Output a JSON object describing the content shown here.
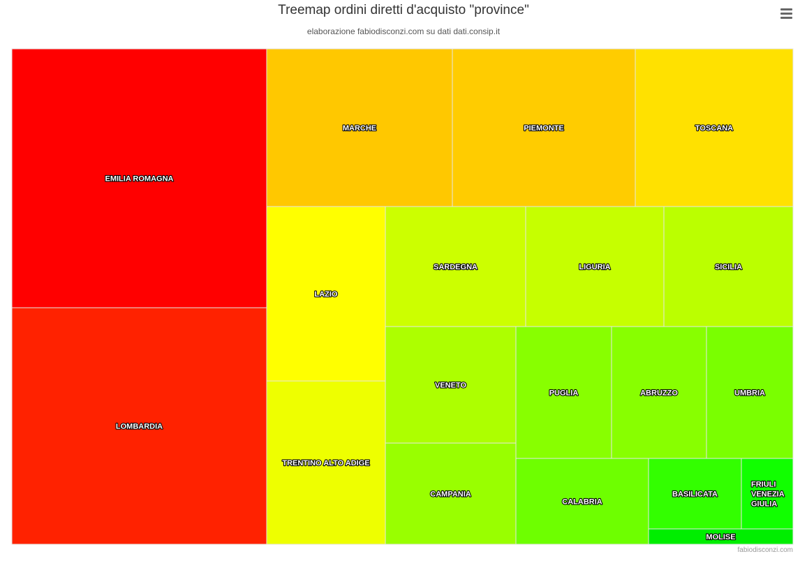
{
  "header": {
    "title": "Treemap ordini diretti d'acquisto \"province\"",
    "subtitle": "elaborazione fabiodisconzi.com su dati dati.consip.it"
  },
  "menu": {
    "icon": "hamburger-menu-icon"
  },
  "credit": {
    "text": "fabiodisconzi.com"
  },
  "chart_data": {
    "type": "treemap",
    "title": "Treemap ordini diretti d'acquisto \"province\"",
    "subtitle": "elaborazione fabiodisconzi.com su dati dati.consip.it",
    "label_color": "#ffffff",
    "border_color": "#e6e6e6",
    "items": [
      {
        "label": "EMILIA ROMAGNA",
        "value": 1000,
        "color": "#ff0000"
      },
      {
        "label": "LOMBARDIA",
        "value": 957,
        "color": "#ff2200"
      },
      {
        "label": "MARCHE",
        "value": 350,
        "color": "#ffc800"
      },
      {
        "label": "PIEMONTE",
        "value": 344,
        "color": "#ffcc00"
      },
      {
        "label": "TOSCANA",
        "value": 298,
        "color": "#ffe100"
      },
      {
        "label": "LAZIO",
        "value": 311,
        "color": "#ffff00"
      },
      {
        "label": "TRENTINO ALTO ADIGE",
        "value": 292,
        "color": "#eeff00"
      },
      {
        "label": "SARDEGNA",
        "value": 253,
        "color": "#ccff00"
      },
      {
        "label": "LIGURIA",
        "value": 249,
        "color": "#c6ff00"
      },
      {
        "label": "SICILIA",
        "value": 233,
        "color": "#bbff00"
      },
      {
        "label": "VENETO",
        "value": 229,
        "color": "#adff00"
      },
      {
        "label": "CAMPANIA",
        "value": 212,
        "color": "#99ff00"
      },
      {
        "label": "PUGLIA",
        "value": 190,
        "color": "#88ff00"
      },
      {
        "label": "ABRUZZO",
        "value": 188,
        "color": "#88ff00"
      },
      {
        "label": "UMBRIA",
        "value": 172,
        "color": "#7aff00"
      },
      {
        "label": "CALABRIA",
        "value": 173,
        "color": "#6eff00"
      },
      {
        "label": "BASILICATA",
        "value": 114,
        "color": "#33ff00"
      },
      {
        "label": "FRIULI VENEZIA GIULIA",
        "value": 73,
        "color": "#11ff00"
      },
      {
        "label": "MOLISE",
        "value": 31,
        "color": "#00ee00"
      }
    ]
  }
}
